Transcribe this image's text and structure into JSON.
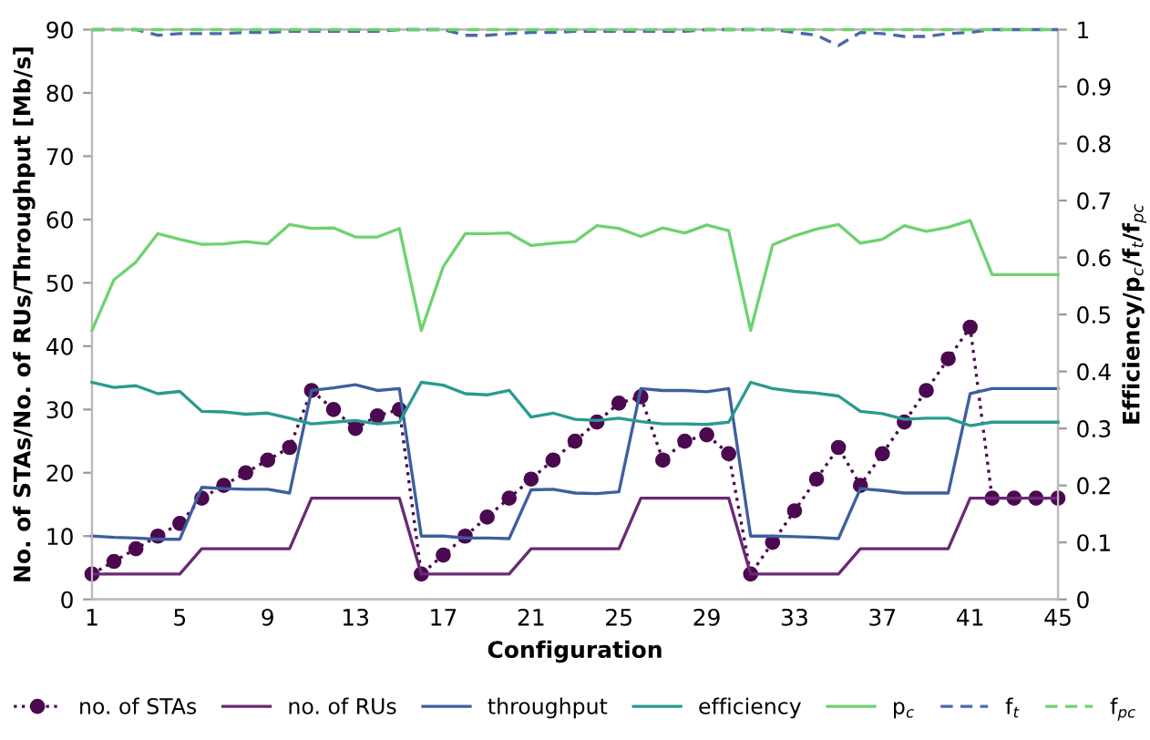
{
  "chart_data": {
    "type": "line",
    "xlabel": "Configuration",
    "ylabel": "No. of STAs/No. of RUs/Throughput [Mb/s]",
    "y2label": "Efficiency/p$_{c}$/f$_{t}$/f$_{pc}$",
    "categories": [
      "1",
      null,
      null,
      null,
      "5",
      null,
      null,
      null,
      "9",
      null,
      null,
      null,
      "13",
      null,
      null,
      null,
      "17",
      null,
      null,
      null,
      "21",
      null,
      null,
      null,
      "25",
      null,
      null,
      null,
      "29",
      null,
      null,
      null,
      "33",
      null,
      null,
      null,
      "37",
      null,
      null,
      null,
      "41",
      null,
      null,
      null,
      "45"
    ],
    "ylim": [
      0,
      90
    ],
    "yticks": [
      0,
      10,
      20,
      30,
      40,
      50,
      60,
      70,
      80,
      90
    ],
    "y2lim": [
      0,
      1
    ],
    "y2ticks": [
      0,
      0.1,
      0.2,
      0.3,
      0.4,
      0.5,
      0.6,
      0.7,
      0.8,
      0.9,
      1
    ],
    "grid": false,
    "legend": "bottom",
    "series": [
      {
        "name": "no. of STAs",
        "color": "#4b0a50",
        "marker": "circle",
        "line_style": "dotted",
        "values": [
          4,
          6,
          8,
          10,
          12,
          16,
          18,
          20,
          22,
          24,
          33,
          30,
          27,
          29,
          30,
          4,
          7,
          10,
          13,
          16,
          19,
          22,
          25,
          28,
          31,
          32,
          22,
          25,
          26,
          23,
          4,
          9,
          14,
          19,
          24,
          18,
          23,
          28,
          33,
          38,
          43,
          16,
          16,
          16,
          16
        ]
      },
      {
        "name": "no. of RUs",
        "color": "#6a2a74",
        "marker": "none",
        "line_style": "solid",
        "values": [
          4,
          4,
          4,
          4,
          4,
          8,
          8,
          8,
          8,
          8,
          16,
          16,
          16,
          16,
          16,
          4,
          4,
          4,
          4,
          4,
          8,
          8,
          8,
          8,
          8,
          16,
          16,
          16,
          16,
          16,
          4,
          4,
          4,
          4,
          4,
          8,
          8,
          8,
          8,
          8,
          16,
          16,
          16,
          16,
          16
        ]
      },
      {
        "name": "throughput",
        "color": "#3e5f9f",
        "marker": "none",
        "line_style": "solid",
        "values": [
          10,
          9.8,
          9.7,
          9.5,
          9.5,
          17.7,
          17.5,
          17.4,
          17.4,
          16.8,
          33,
          33.4,
          33.9,
          33,
          33.3,
          10,
          10,
          9.7,
          9.7,
          9.6,
          17.3,
          17.4,
          16.8,
          16.7,
          17,
          33.3,
          33,
          33,
          32.8,
          33.3,
          10,
          10,
          9.9,
          9.8,
          9.6,
          17.5,
          17.2,
          16.8,
          16.8,
          16.8,
          32.5,
          33.3,
          33.3,
          33.3,
          33.3
        ]
      },
      {
        "name": "efficiency",
        "color": "#2a9a8f",
        "marker": "none",
        "line_style": "solid",
        "axis": "y2",
        "values": [
          0.381,
          0.372,
          0.375,
          0.361,
          0.365,
          0.33,
          0.329,
          0.325,
          0.327,
          0.318,
          0.308,
          0.311,
          0.314,
          0.308,
          0.311,
          0.381,
          0.376,
          0.361,
          0.359,
          0.367,
          0.32,
          0.327,
          0.316,
          0.314,
          0.318,
          0.312,
          0.308,
          0.308,
          0.307,
          0.311,
          0.381,
          0.37,
          0.365,
          0.362,
          0.357,
          0.33,
          0.326,
          0.316,
          0.318,
          0.318,
          0.305,
          0.311,
          0.311,
          0.311,
          0.311
        ]
      },
      {
        "name": "p$_{c}$",
        "color": "#6fd26f",
        "marker": "none",
        "line_style": "solid",
        "axis": "y2",
        "values": [
          0.472,
          0.561,
          0.592,
          0.642,
          0.632,
          0.623,
          0.624,
          0.628,
          0.624,
          0.658,
          0.651,
          0.652,
          0.636,
          0.636,
          0.651,
          0.472,
          0.584,
          0.642,
          0.642,
          0.643,
          0.621,
          0.625,
          0.628,
          0.656,
          0.651,
          0.637,
          0.652,
          0.643,
          0.657,
          0.647,
          0.472,
          0.622,
          0.638,
          0.65,
          0.658,
          0.625,
          0.632,
          0.656,
          0.646,
          0.653,
          0.665,
          0.57,
          0.57,
          0.57,
          0.57
        ]
      },
      {
        "name": "f$_{t}$",
        "color": "#4a6aaa",
        "marker": "none",
        "line_style": "dashed",
        "axis": "y2",
        "values": [
          1,
          1,
          1,
          0.99,
          0.993,
          0.993,
          0.993,
          0.995,
          0.995,
          0.997,
          0.997,
          0.997,
          0.997,
          0.997,
          1,
          1,
          1,
          0.99,
          0.99,
          0.993,
          0.995,
          0.995,
          0.997,
          0.997,
          0.997,
          0.997,
          0.997,
          0.997,
          1,
          1,
          1,
          1,
          0.995,
          0.99,
          0.972,
          0.995,
          0.993,
          0.988,
          0.988,
          0.993,
          0.995,
          1,
          1,
          1,
          1
        ]
      },
      {
        "name": "f$_{pc}$",
        "color": "#6fd26f",
        "marker": "none",
        "line_style": "dashed",
        "axis": "y2",
        "values": [
          1,
          1,
          1,
          1,
          1,
          1,
          1,
          1,
          1,
          1,
          1,
          1,
          1,
          1,
          1,
          1,
          1,
          1,
          1,
          1,
          1,
          1,
          1,
          1,
          1,
          1,
          1,
          1,
          1,
          1,
          1,
          1,
          1,
          1,
          1,
          1,
          1,
          1,
          1,
          1,
          1,
          1,
          1,
          1,
          1
        ]
      }
    ]
  }
}
